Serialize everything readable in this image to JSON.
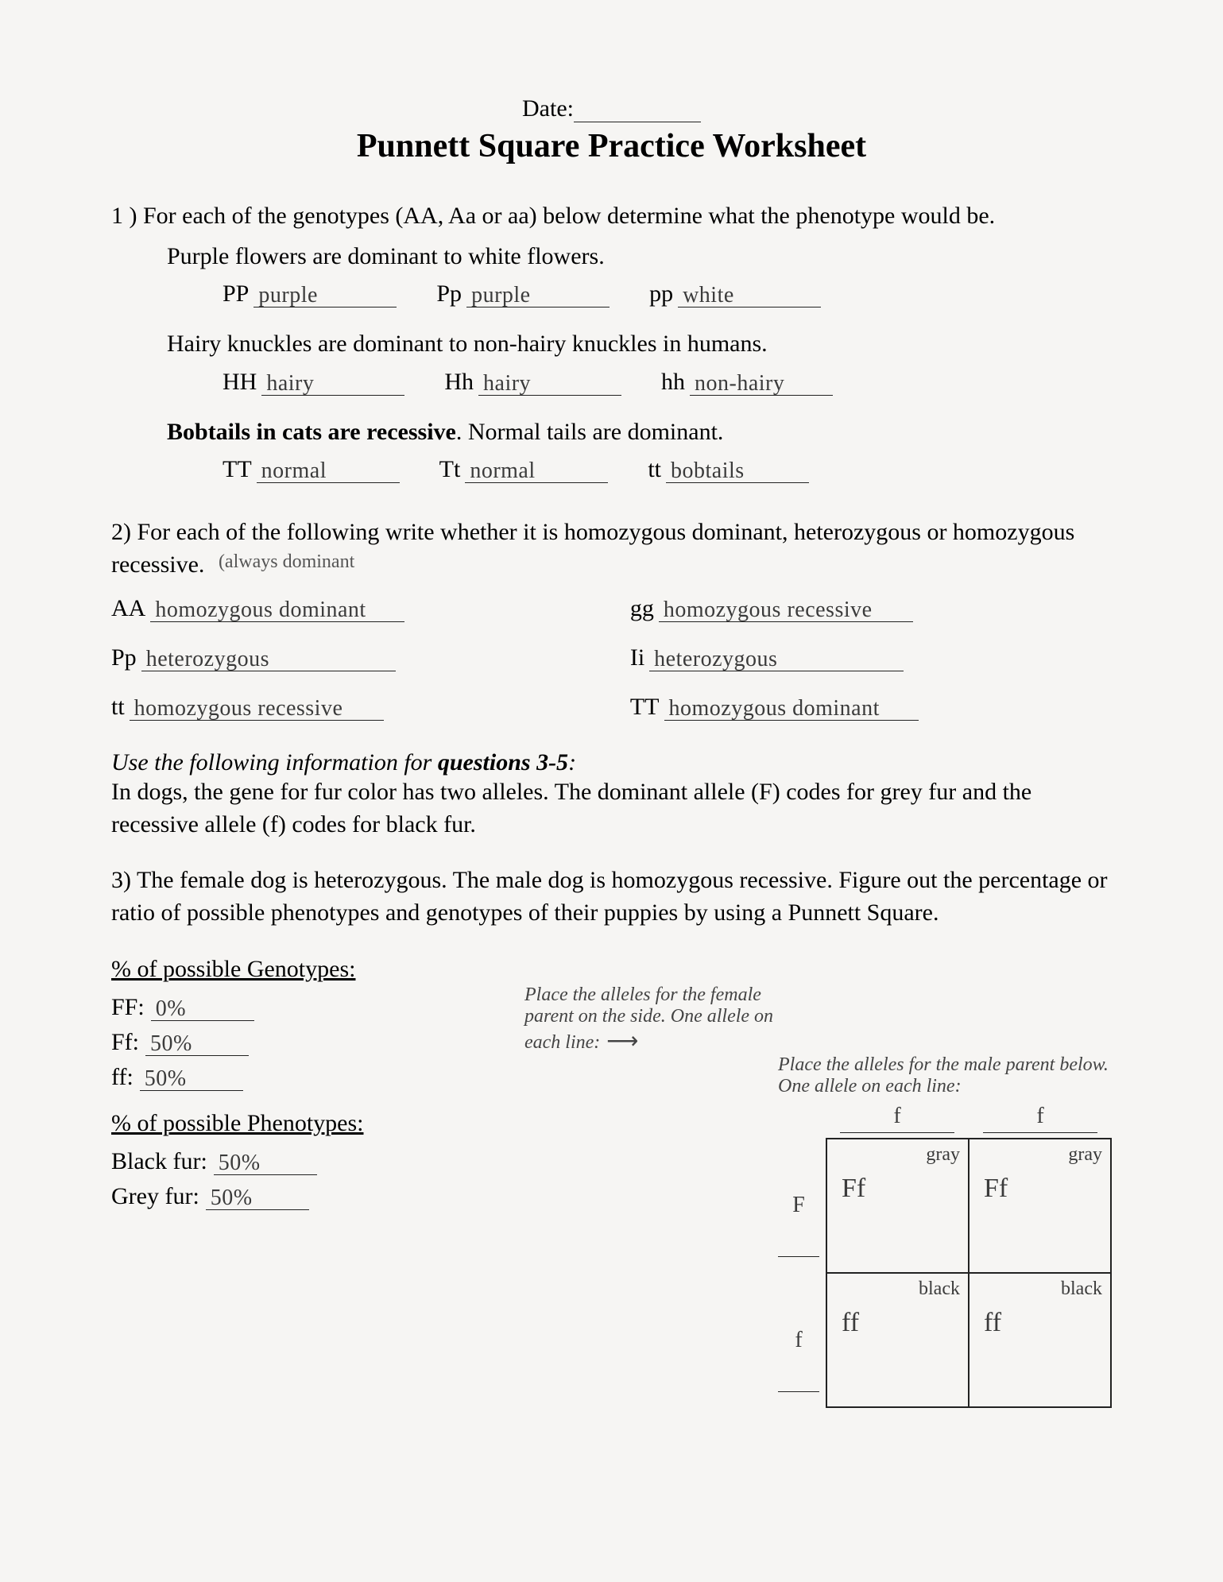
{
  "header": {
    "date_label": "Date:",
    "title": "Punnett Square Practice Worksheet"
  },
  "q1": {
    "prompt": "1 ) For each of the genotypes (AA, Aa or aa) below determine what the phenotype would be.",
    "traits": [
      {
        "desc": "Purple flowers are dominant to white flowers.",
        "items": [
          {
            "geno": "PP",
            "ans": "purple"
          },
          {
            "geno": "Pp",
            "ans": "purple"
          },
          {
            "geno": "pp",
            "ans": "white"
          }
        ]
      },
      {
        "desc": "Hairy knuckles are dominant to non-hairy knuckles in humans.",
        "items": [
          {
            "geno": "HH",
            "ans": "hairy"
          },
          {
            "geno": "Hh",
            "ans": "hairy"
          },
          {
            "geno": "hh",
            "ans": "non-hairy"
          }
        ]
      },
      {
        "desc_pre": "Bobtails in cats are recessive",
        "desc_post": ". Normal tails are dominant.",
        "items": [
          {
            "geno": "TT",
            "ans": "normal"
          },
          {
            "geno": "Tt",
            "ans": "normal"
          },
          {
            "geno": "tt",
            "ans": "bobtails"
          }
        ]
      }
    ]
  },
  "q2": {
    "prompt": "2) For each of the following write whether it is homozygous dominant, heterozygous or homozygous recessive.",
    "note": "(always dominant",
    "items": [
      {
        "geno": "AA",
        "ans": "homozygous dominant"
      },
      {
        "geno": "gg",
        "ans": "homozygous recessive"
      },
      {
        "geno": "Pp",
        "ans": "heterozygous"
      },
      {
        "geno": "Ii",
        "ans": "heterozygous"
      },
      {
        "geno": "tt",
        "ans": "homozygous recessive"
      },
      {
        "geno": "TT",
        "ans": "homozygous dominant"
      }
    ]
  },
  "info": {
    "head_pre": "Use the following information for ",
    "head_bold": "questions 3-5",
    "head_post": ":",
    "body": "In dogs, the gene for fur color has two alleles. The dominant allele (F) codes for grey fur and the recessive allele (f) codes for black fur."
  },
  "q3": {
    "prompt": "3) The female dog is heterozygous. The male dog is homozygous recessive. Figure out the percentage or ratio of possible phenotypes and genotypes of their puppies by using a Punnett Square.",
    "geno_head": "% of possible Genotypes:",
    "geno": [
      {
        "lbl": "FF:",
        "ans": "0%"
      },
      {
        "lbl": "Ff:",
        "ans": "50%"
      },
      {
        "lbl": "ff:",
        "ans": "50%"
      }
    ],
    "pheno_head": "% of possible Phenotypes:",
    "pheno": [
      {
        "lbl": "Black fur:",
        "ans": "50%"
      },
      {
        "lbl": "Grey fur:",
        "ans": "50%"
      }
    ],
    "female_note": "Place the alleles for the female parent on the side. One allele on each line:",
    "male_note": "Place the alleles for the male parent below. One allele on each line:",
    "male_alleles": [
      "f",
      "f"
    ],
    "female_alleles": [
      "F",
      "f"
    ],
    "cells": [
      [
        {
          "pheno": "gray",
          "geno": "Ff"
        },
        {
          "pheno": "gray",
          "geno": "Ff"
        }
      ],
      [
        {
          "pheno": "black",
          "geno": "ff"
        },
        {
          "pheno": "black",
          "geno": "ff"
        }
      ]
    ]
  }
}
